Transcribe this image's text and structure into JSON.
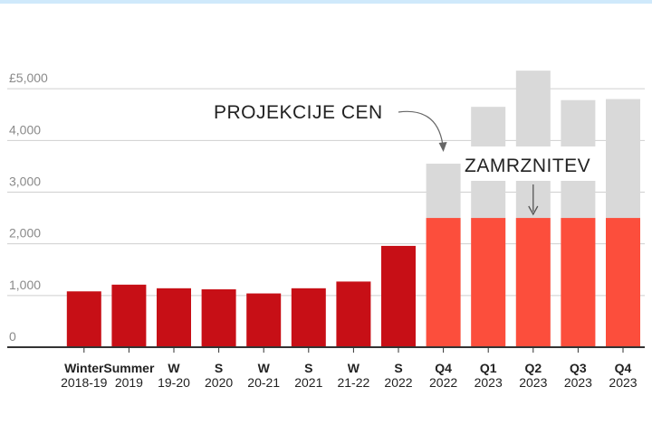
{
  "chart_data": {
    "type": "bar",
    "title": "",
    "xlabel": "",
    "ylabel": "",
    "ylim": [
      0,
      5300
    ],
    "y_ticks": [
      {
        "value": 0,
        "label": "0"
      },
      {
        "value": 1000,
        "label": "1,000"
      },
      {
        "value": 2000,
        "label": "2,000"
      },
      {
        "value": 3000,
        "label": "3,000"
      },
      {
        "value": 4000,
        "label": "4,000"
      },
      {
        "value": 5000,
        "label": "£5,000"
      }
    ],
    "grid": true,
    "categories": [
      {
        "line1": "Winter",
        "line2": "2018-19"
      },
      {
        "line1": "Summer",
        "line2": "2019"
      },
      {
        "line1": "W",
        "line2": "19-20"
      },
      {
        "line1": "S",
        "line2": "2020"
      },
      {
        "line1": "W",
        "line2": "20-21"
      },
      {
        "line1": "S",
        "line2": "2021"
      },
      {
        "line1": "W",
        "line2": "21-22"
      },
      {
        "line1": "S",
        "line2": "2022"
      },
      {
        "line1": "Q4",
        "line2": "2022"
      },
      {
        "line1": "Q1",
        "line2": "2023"
      },
      {
        "line1": "Q2",
        "line2": "2023"
      },
      {
        "line1": "Q3",
        "line2": "2023"
      },
      {
        "line1": "Q4",
        "line2": "2023"
      }
    ],
    "series": [
      {
        "color": "#c70f16",
        "values": [
          1080,
          1210,
          1140,
          1120,
          1040,
          1140,
          1270,
          1960,
          null,
          null,
          null,
          null,
          null
        ]
      },
      {
        "color": "#fc4e3c",
        "values": [
          null,
          null,
          null,
          null,
          null,
          null,
          null,
          null,
          2500,
          2500,
          2500,
          2500,
          2500
        ]
      },
      {
        "color": "#d9d9d9",
        "values": [
          null,
          null,
          null,
          null,
          null,
          null,
          null,
          null,
          3550,
          4650,
          5350,
          4780,
          4800
        ]
      }
    ],
    "annotations": [
      {
        "text": "PROJEKCIJE CEN",
        "target_category": 8
      },
      {
        "text": "ZAMRZNITEV",
        "target_category": 10
      }
    ]
  }
}
